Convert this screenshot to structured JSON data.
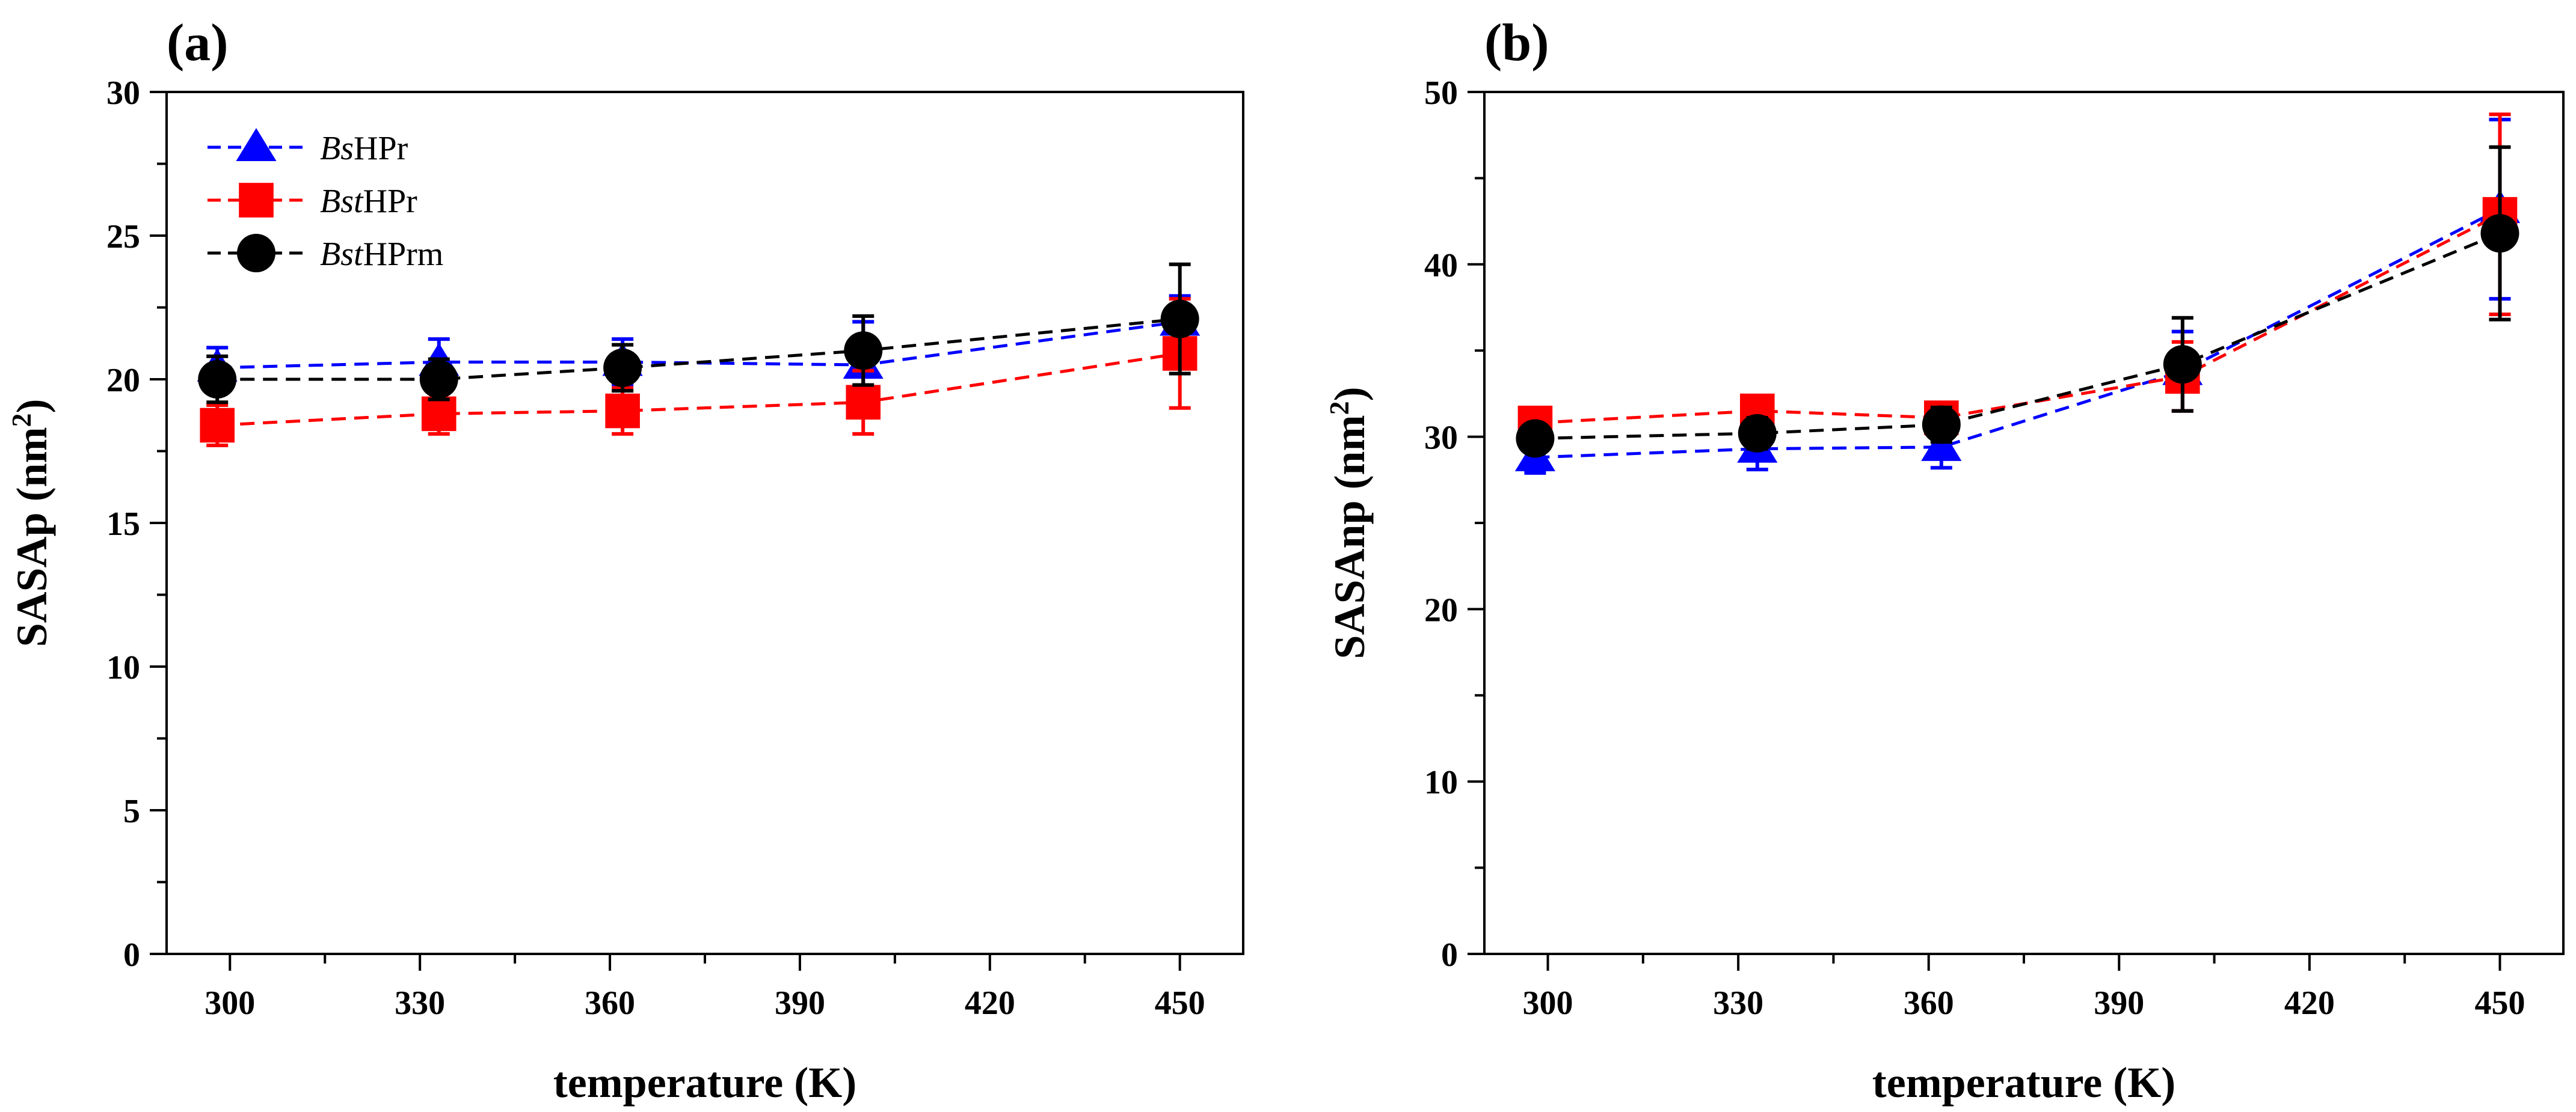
{
  "chart_data": [
    {
      "type": "line",
      "panel_label": "(a)",
      "xlabel": "temperature (K)",
      "ylabel": "SASAp (nm",
      "ylabel_sup": "2",
      "ylabel_close": ")",
      "xlim": [
        290,
        460
      ],
      "ylim": [
        0,
        30
      ],
      "xticks": [
        300,
        330,
        360,
        390,
        420,
        450
      ],
      "yticks": [
        0,
        5,
        10,
        15,
        20,
        25,
        30
      ],
      "legend": {
        "placement": "top-left"
      },
      "series": [
        {
          "name": "BsHPr",
          "name_italic": "Bs",
          "name_rest": "HPr",
          "color": "#0000ff",
          "marker": "triangle",
          "x": [
            298,
            333,
            362,
            400,
            450
          ],
          "y": [
            20.4,
            20.6,
            20.6,
            20.5,
            22.0
          ],
          "err": [
            0.7,
            0.8,
            0.8,
            1.5,
            0.9
          ]
        },
        {
          "name": "BstHPr",
          "name_italic": "Bst",
          "name_rest": "HPr",
          "color": "#ff0000",
          "marker": "square",
          "x": [
            298,
            333,
            362,
            400,
            450
          ],
          "y": [
            18.4,
            18.8,
            18.9,
            19.2,
            20.9
          ],
          "err": [
            0.7,
            0.7,
            0.8,
            1.1,
            1.9
          ]
        },
        {
          "name": "BstHPrm",
          "name_italic": "Bst",
          "name_rest": "HPrm",
          "color": "#000000",
          "marker": "circle",
          "x": [
            298,
            333,
            362,
            400,
            450
          ],
          "y": [
            20.0,
            20.0,
            20.4,
            21.0,
            22.1
          ],
          "err": [
            0.8,
            0.7,
            0.8,
            1.2,
            1.9
          ]
        }
      ]
    },
    {
      "type": "line",
      "panel_label": "(b)",
      "xlabel": "temperature (K)",
      "ylabel": "SASAnp (nm",
      "ylabel_sup": "2",
      "ylabel_close": ")",
      "xlim": [
        290,
        460
      ],
      "ylim": [
        0,
        50
      ],
      "xticks": [
        300,
        330,
        360,
        390,
        420,
        450
      ],
      "yticks": [
        0,
        10,
        20,
        30,
        40,
        50
      ],
      "series": [
        {
          "name": "BsHPr",
          "color": "#0000ff",
          "marker": "triangle",
          "x": [
            298,
            333,
            362,
            400,
            450
          ],
          "y": [
            28.8,
            29.3,
            29.4,
            33.8,
            43.2
          ],
          "err": [
            0.9,
            1.2,
            1.2,
            2.3,
            5.2
          ]
        },
        {
          "name": "BstHPr",
          "color": "#ff0000",
          "marker": "square",
          "x": [
            298,
            333,
            362,
            400,
            450
          ],
          "y": [
            30.8,
            31.5,
            31.1,
            33.5,
            42.9
          ],
          "err": [
            0.7,
            0.8,
            0.8,
            2.0,
            5.8
          ]
        },
        {
          "name": "BstHPrm",
          "color": "#000000",
          "marker": "circle",
          "x": [
            298,
            333,
            362,
            400,
            450
          ],
          "y": [
            29.9,
            30.2,
            30.7,
            34.2,
            41.8
          ],
          "err": [
            0.8,
            0.9,
            1.0,
            2.7,
            5.0
          ]
        }
      ]
    }
  ]
}
